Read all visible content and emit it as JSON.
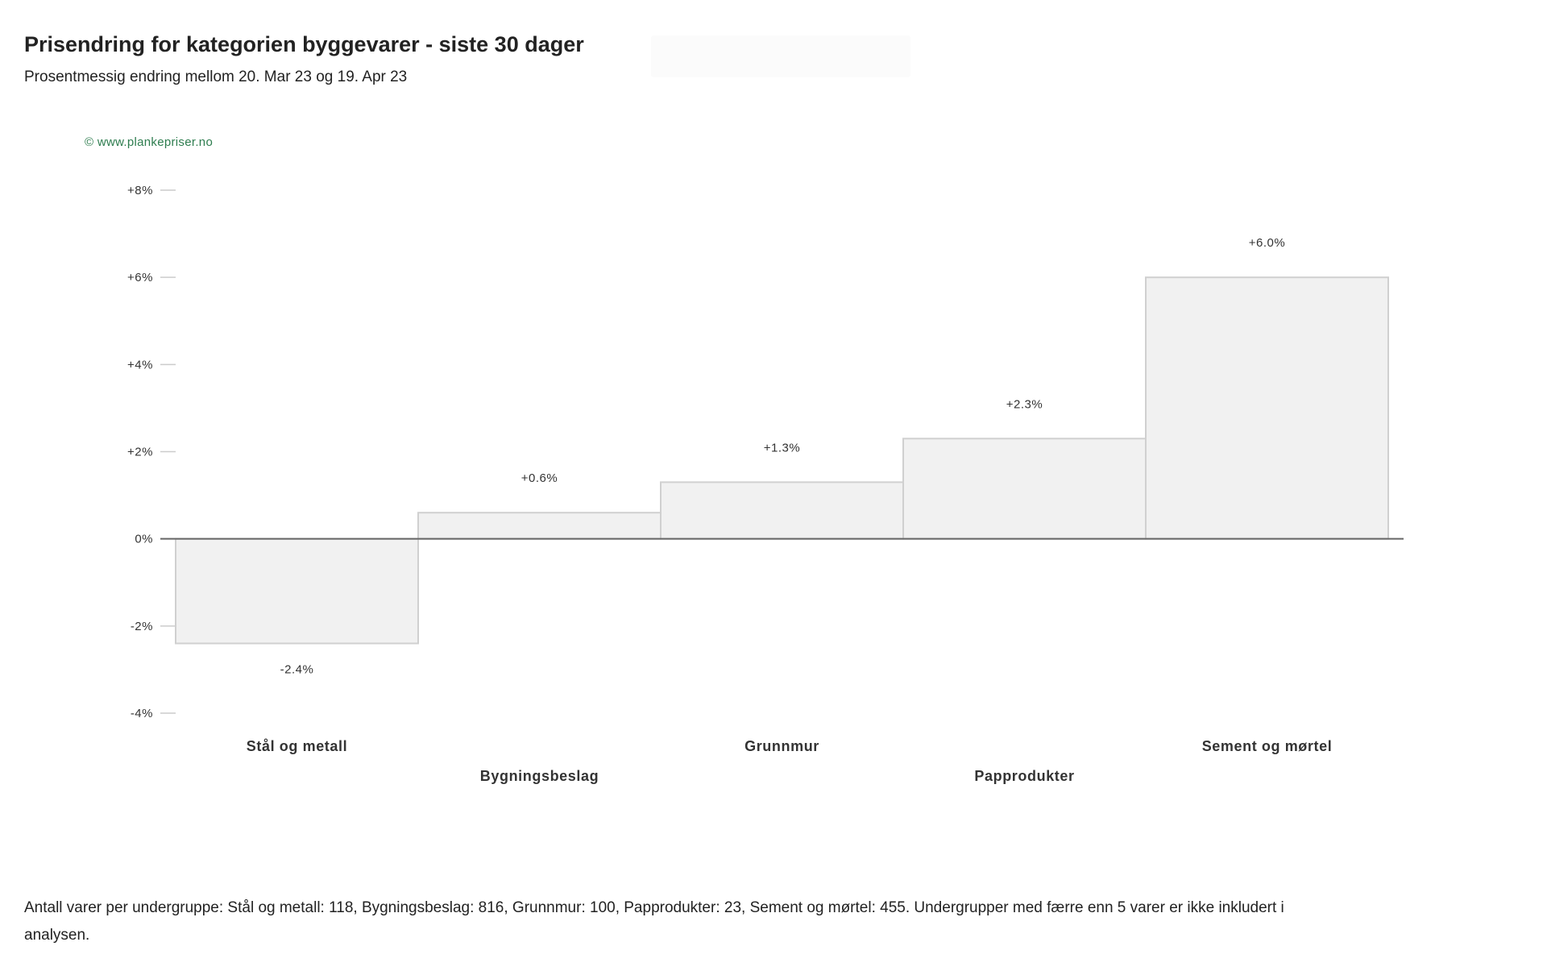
{
  "header": {
    "title": "Prisendring for kategorien byggevarer - siste 30 dager",
    "subtitle": "Prosentmessig endring mellom 20. Mar 23 og 19. Apr 23"
  },
  "watermark": "© www.plankepriser.no",
  "chart_data": {
    "type": "bar",
    "title": "Prisendring for kategorien byggevarer - siste 30 dager",
    "subtitle": "Prosentmessig endring mellom 20. Mar 23 og 19. Apr 23",
    "xlabel": "",
    "ylabel": "",
    "categories": [
      "Stål og metall",
      "Bygningsbeslag",
      "Grunnmur",
      "Papprodukter",
      "Sement og mørtel"
    ],
    "values": [
      -2.4,
      0.6,
      1.3,
      2.3,
      6.0
    ],
    "value_labels": [
      "-2.4%",
      "+0.6%",
      "+1.3%",
      "+2.3%",
      "+6.0%"
    ],
    "ylim": [
      -4,
      8
    ],
    "yticks": [
      -4,
      -2,
      0,
      2,
      4,
      6,
      8
    ],
    "ytick_labels": [
      "-4%",
      "-2%",
      "0%",
      "+2%",
      "+4%",
      "+6%",
      "+8%"
    ],
    "grid": false,
    "legend": "none",
    "colors": {
      "bar_fill": "#f1f1f1",
      "bar_stroke": "#d0d0d0",
      "zero_line": "#666666",
      "tick": "#cccccc",
      "text": "#333333"
    }
  },
  "footnote": "Antall varer per undergruppe: Stål og metall: 118, Bygningsbeslag: 816, Grunnmur: 100, Papprodukter: 23, Sement og mørtel: 455. Undergrupper med færre enn 5 varer er ikke inkludert i analysen."
}
